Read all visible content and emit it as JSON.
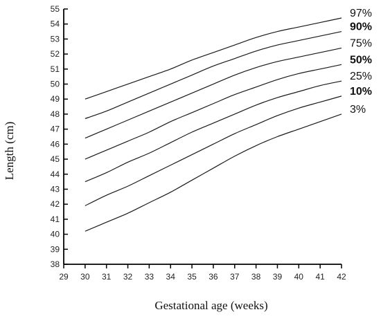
{
  "chart_data": {
    "type": "line",
    "xlabel": "Gestational age (weeks)",
    "ylabel": "Length (cm)",
    "xlim": [
      29,
      42
    ],
    "ylim": [
      38,
      55
    ],
    "x_ticks": [
      "29",
      "30",
      "31",
      "32",
      "33",
      "34",
      "35",
      "36",
      "37",
      "38",
      "39",
      "40",
      "41",
      "42"
    ],
    "y_ticks": [
      "38",
      "39",
      "40",
      "41",
      "42",
      "43",
      "44",
      "45",
      "46",
      "47",
      "48",
      "49",
      "50",
      "51",
      "52",
      "53",
      "54",
      "55"
    ],
    "x": [
      30,
      31,
      32,
      33,
      34,
      35,
      36,
      37,
      38,
      39,
      40,
      41,
      42
    ],
    "series": [
      {
        "name": "97%",
        "bold": false,
        "values": [
          49.0,
          49.5,
          50.0,
          50.5,
          51.0,
          51.6,
          52.1,
          52.6,
          53.1,
          53.5,
          53.8,
          54.1,
          54.4
        ]
      },
      {
        "name": "90%",
        "bold": true,
        "values": [
          47.7,
          48.2,
          48.8,
          49.4,
          50.0,
          50.6,
          51.2,
          51.7,
          52.2,
          52.6,
          52.9,
          53.2,
          53.5
        ]
      },
      {
        "name": "75%",
        "bold": false,
        "values": [
          46.4,
          47.0,
          47.6,
          48.2,
          48.8,
          49.4,
          50.0,
          50.6,
          51.1,
          51.5,
          51.8,
          52.1,
          52.4
        ]
      },
      {
        "name": "50%",
        "bold": true,
        "values": [
          45.0,
          45.6,
          46.2,
          46.8,
          47.5,
          48.1,
          48.7,
          49.3,
          49.8,
          50.3,
          50.7,
          51.0,
          51.3
        ]
      },
      {
        "name": "25%",
        "bold": false,
        "values": [
          43.5,
          44.1,
          44.8,
          45.4,
          46.1,
          46.8,
          47.4,
          48.0,
          48.6,
          49.1,
          49.5,
          49.9,
          50.2
        ]
      },
      {
        "name": "10%",
        "bold": true,
        "values": [
          41.9,
          42.6,
          43.2,
          43.9,
          44.6,
          45.3,
          46.0,
          46.7,
          47.3,
          47.9,
          48.4,
          48.8,
          49.2
        ]
      },
      {
        "name": "3%",
        "bold": false,
        "values": [
          40.2,
          40.8,
          41.4,
          42.1,
          42.8,
          43.6,
          44.4,
          45.2,
          45.9,
          46.5,
          47.0,
          47.5,
          48.0
        ]
      }
    ]
  }
}
